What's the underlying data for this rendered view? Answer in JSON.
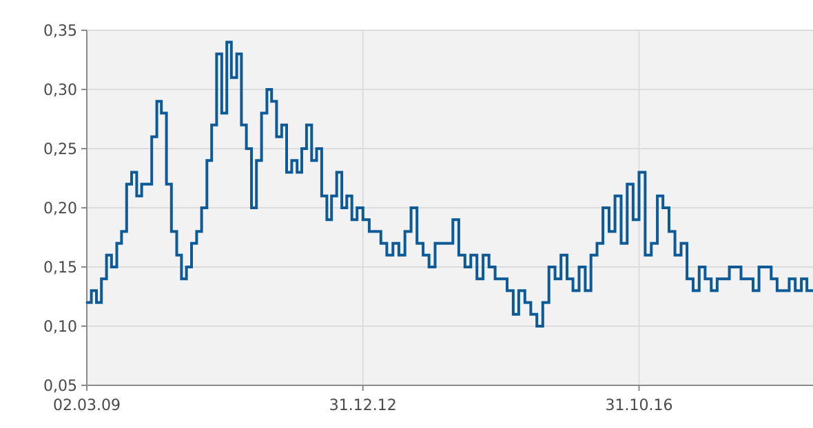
{
  "chart_data": {
    "type": "line",
    "title": "",
    "xlabel": "",
    "ylabel": "",
    "ylim": [
      0.05,
      0.35
    ],
    "y_ticks": [
      "0,05",
      "0,10",
      "0,15",
      "0,20",
      "0,25",
      "0,30",
      "0,35"
    ],
    "y_tick_values": [
      0.05,
      0.1,
      0.15,
      0.2,
      0.25,
      0.3,
      0.35
    ],
    "x_ticks": [
      "02.03.09",
      "31.12.12",
      "31.10.16"
    ],
    "x_tick_values": [
      "2009-03-02",
      "2012-12-31",
      "2016-10-31"
    ],
    "xlim": [
      "2009-03-02",
      "2019-04-01"
    ],
    "grid": true,
    "line_color": "#0d5a96",
    "background_color": "#f2f2f2",
    "grid_color": "#dcdcdc",
    "series": [
      {
        "x": [
          "2009-03-02",
          "2009-03-25",
          "2009-04-20",
          "2009-05-15",
          "2009-06-10",
          "2009-07-05",
          "2009-08-01",
          "2009-08-25",
          "2009-09-20",
          "2009-10-15",
          "2009-11-10",
          "2009-12-05",
          "2010-01-01",
          "2010-01-25",
          "2010-02-20",
          "2010-03-15",
          "2010-04-10",
          "2010-05-05",
          "2010-06-01",
          "2010-06-25",
          "2010-07-20",
          "2010-08-15",
          "2010-09-10",
          "2010-10-05",
          "2010-11-01",
          "2010-11-25",
          "2010-12-20",
          "2011-01-15",
          "2011-02-10",
          "2011-03-05",
          "2011-04-01",
          "2011-04-25",
          "2011-05-20",
          "2011-06-15",
          "2011-07-10",
          "2011-08-05",
          "2011-09-01",
          "2011-09-25",
          "2011-10-20",
          "2011-11-15",
          "2011-12-10",
          "2012-01-05",
          "2012-02-01",
          "2012-02-25",
          "2012-03-20",
          "2012-04-15",
          "2012-05-10",
          "2012-06-05",
          "2012-07-01",
          "2012-07-25",
          "2012-08-20",
          "2012-09-15",
          "2012-10-10",
          "2012-11-05",
          "2012-12-01",
          "2012-12-31",
          "2013-02-01",
          "2013-03-01",
          "2013-04-01",
          "2013-05-01",
          "2013-06-01",
          "2013-07-01",
          "2013-08-01",
          "2013-09-01",
          "2013-10-01",
          "2013-11-01",
          "2013-12-01",
          "2014-01-01",
          "2014-02-01",
          "2014-03-01",
          "2014-04-01",
          "2014-05-01",
          "2014-06-01",
          "2014-07-01",
          "2014-08-01",
          "2014-09-01",
          "2014-10-01",
          "2014-11-01",
          "2014-12-01",
          "2015-01-01",
          "2015-02-01",
          "2015-03-01",
          "2015-04-01",
          "2015-05-01",
          "2015-06-01",
          "2015-07-01",
          "2015-08-01",
          "2015-09-01",
          "2015-10-01",
          "2015-11-01",
          "2015-12-01",
          "2016-01-01",
          "2016-02-01",
          "2016-03-01",
          "2016-04-01",
          "2016-05-01",
          "2016-06-01",
          "2016-07-01",
          "2016-08-01",
          "2016-09-01",
          "2016-10-01",
          "2016-10-31",
          "2016-12-01",
          "2017-01-01",
          "2017-02-01",
          "2017-03-01",
          "2017-04-01",
          "2017-05-01",
          "2017-06-01",
          "2017-07-01",
          "2017-08-01",
          "2017-09-01",
          "2017-10-01",
          "2017-11-01",
          "2017-12-01",
          "2018-01-01",
          "2018-02-01",
          "2018-03-01",
          "2018-04-01",
          "2018-05-01",
          "2018-06-01",
          "2018-07-01",
          "2018-08-01",
          "2018-09-01",
          "2018-10-01",
          "2018-11-01",
          "2018-12-01",
          "2019-01-01",
          "2019-02-01",
          "2019-03-01",
          "2019-04-01"
        ],
        "values": [
          0.12,
          0.13,
          0.12,
          0.14,
          0.16,
          0.15,
          0.17,
          0.18,
          0.22,
          0.23,
          0.21,
          0.22,
          0.22,
          0.26,
          0.29,
          0.28,
          0.22,
          0.18,
          0.16,
          0.14,
          0.15,
          0.17,
          0.18,
          0.2,
          0.24,
          0.27,
          0.33,
          0.28,
          0.34,
          0.31,
          0.33,
          0.27,
          0.25,
          0.2,
          0.24,
          0.28,
          0.3,
          0.29,
          0.26,
          0.27,
          0.23,
          0.24,
          0.23,
          0.25,
          0.27,
          0.24,
          0.25,
          0.21,
          0.19,
          0.21,
          0.23,
          0.2,
          0.21,
          0.19,
          0.2,
          0.19,
          0.18,
          0.18,
          0.17,
          0.16,
          0.17,
          0.16,
          0.18,
          0.2,
          0.17,
          0.16,
          0.15,
          0.17,
          0.17,
          0.17,
          0.19,
          0.16,
          0.15,
          0.16,
          0.14,
          0.16,
          0.15,
          0.14,
          0.14,
          0.13,
          0.11,
          0.13,
          0.12,
          0.11,
          0.1,
          0.12,
          0.15,
          0.14,
          0.16,
          0.14,
          0.13,
          0.15,
          0.13,
          0.16,
          0.17,
          0.2,
          0.18,
          0.21,
          0.17,
          0.22,
          0.19,
          0.23,
          0.16,
          0.17,
          0.21,
          0.2,
          0.18,
          0.16,
          0.17,
          0.14,
          0.13,
          0.15,
          0.14,
          0.13,
          0.14,
          0.14,
          0.15,
          0.15,
          0.14,
          0.14,
          0.13,
          0.15,
          0.15,
          0.14,
          0.13,
          0.13,
          0.14,
          0.13,
          0.14,
          0.13,
          0.13
        ]
      }
    ]
  }
}
